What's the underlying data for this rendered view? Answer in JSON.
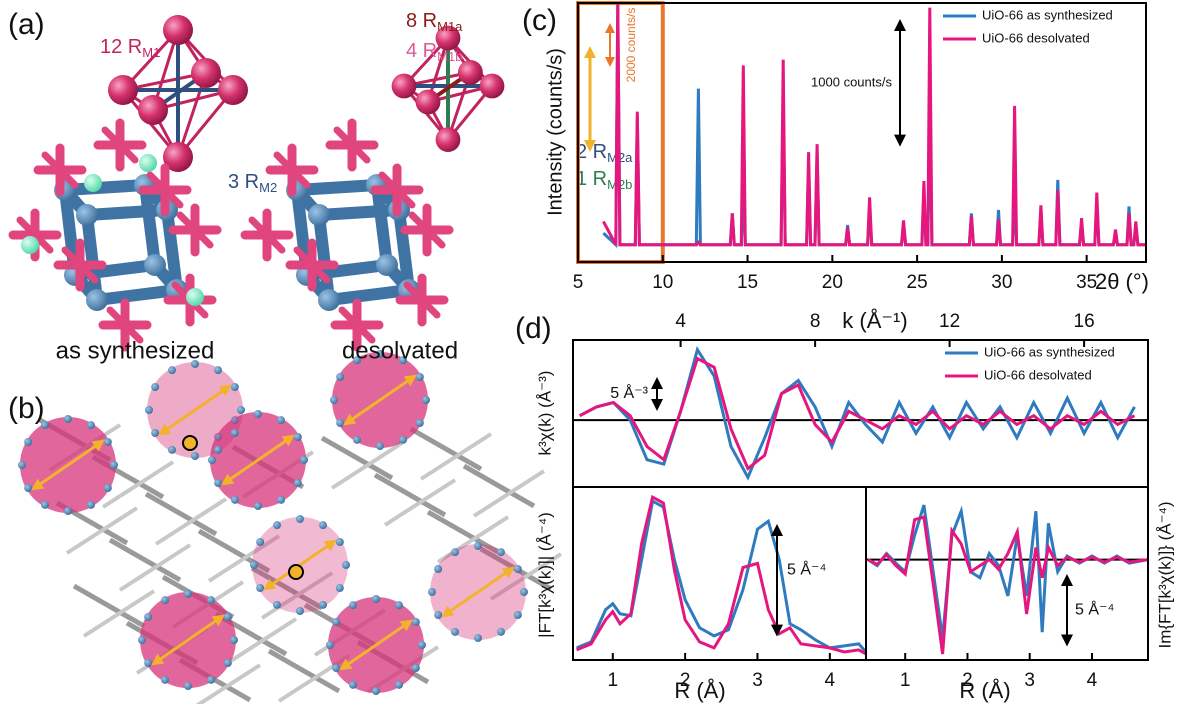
{
  "panels": {
    "a": {
      "label": "(a)",
      "annotations": [
        {
          "text": "12 R",
          "sub": "M1",
          "color": "#c0245e"
        },
        {
          "text": "3 R",
          "sub": "M2",
          "color": "#2f4f7f"
        },
        {
          "text": "8 R",
          "sub": "M1a",
          "color": "#8b1a1a"
        },
        {
          "text": "4 R",
          "sub": "M1b",
          "color": "#e0589a"
        },
        {
          "text": "2 R",
          "sub": "M2a",
          "color": "#2f4f7f"
        },
        {
          "text": "1 R",
          "sub": "M2b",
          "color": "#2e7d4f"
        }
      ],
      "captions": [
        "as synthesized",
        "desolvated"
      ]
    },
    "b": {
      "label": "(b)"
    }
  },
  "chart_data": [
    {
      "type": "line",
      "panel_label": "(c)",
      "ylabel": "Intensity (counts/s)",
      "xlabel": "2θ (°)",
      "xlim": [
        5,
        38.5
      ],
      "xticks": [
        5,
        10,
        15,
        20,
        25,
        30,
        35
      ],
      "ylim": [
        0,
        2240
      ],
      "legend": "upper right",
      "highlight": [
        5,
        10
      ],
      "highlight_color": "#e8762b",
      "annotations": [
        "2000 counts/s"
      ],
      "scale_bar": {
        "value": 1000,
        "label": "1000 counts/s"
      },
      "x": [
        6.5,
        7.23,
        7.35,
        7.47,
        8.38,
        8.5,
        8.62,
        11.98,
        12.1,
        12.22,
        13.98,
        14.1,
        14.22,
        14.63,
        14.75,
        14.87,
        16.98,
        17.1,
        17.22,
        18.48,
        18.6,
        18.72,
        18.98,
        19.1,
        19.22,
        20.78,
        20.9,
        21.02,
        22.08,
        22.2,
        22.32,
        24.08,
        24.2,
        24.32,
        25.28,
        25.4,
        25.52,
        25.63,
        25.75,
        25.87,
        28.08,
        28.2,
        28.32,
        29.68,
        29.8,
        29.92,
        30.63,
        30.75,
        30.87,
        32.18,
        32.3,
        32.42,
        33.18,
        33.3,
        33.42,
        34.58,
        34.7,
        34.82,
        35.48,
        35.6,
        35.72,
        36.58,
        36.7,
        36.82,
        37.38,
        37.5,
        37.62,
        37.78,
        37.9,
        38.02,
        38.5
      ],
      "series": [
        {
          "name": "UiO-66 as synthesized",
          "color": "#2e7bbf",
          "values": [
            250,
            150,
            2250,
            150,
            150,
            1250,
            150,
            150,
            1500,
            150,
            150,
            420,
            150,
            150,
            600,
            150,
            150,
            1400,
            150,
            150,
            850,
            150,
            150,
            950,
            150,
            150,
            320,
            150,
            150,
            450,
            150,
            150,
            330,
            150,
            150,
            600,
            150,
            150,
            1300,
            150,
            150,
            420,
            150,
            150,
            450,
            150,
            150,
            550,
            150,
            150,
            400,
            150,
            150,
            710,
            150,
            150,
            330,
            150,
            150,
            500,
            150,
            150,
            230,
            150,
            150,
            480,
            150,
            150,
            300,
            150,
            150
          ]
        },
        {
          "name": "UiO-66 desolvated",
          "color": "#e5177e",
          "values": [
            350,
            150,
            2250,
            150,
            150,
            1300,
            150,
            150,
            170,
            150,
            150,
            420,
            150,
            150,
            1700,
            150,
            150,
            1750,
            150,
            150,
            950,
            150,
            150,
            1020,
            150,
            150,
            300,
            150,
            150,
            560,
            150,
            150,
            360,
            150,
            150,
            700,
            150,
            150,
            2200,
            150,
            150,
            400,
            150,
            150,
            370,
            150,
            150,
            1350,
            150,
            150,
            490,
            150,
            150,
            620,
            150,
            150,
            380,
            150,
            150,
            600,
            150,
            150,
            280,
            150,
            150,
            420,
            150,
            150,
            350,
            150,
            150
          ]
        }
      ]
    },
    {
      "type": "line",
      "panel_label": "(d)",
      "ylabel": "k³χ(k) (Å⁻³)",
      "xlabel": "k (Å⁻¹)",
      "xaxis": "top",
      "xlim": [
        0.8,
        17.9
      ],
      "xticks": [
        4,
        8,
        12,
        16
      ],
      "ylim": [
        -15.2,
        18.2
      ],
      "zero_line": true,
      "legend": "upper right",
      "scale_bar": {
        "value": 5,
        "label": "5 Å⁻³"
      },
      "x": [
        1,
        1.5,
        2,
        2.5,
        3,
        3.5,
        4,
        4.5,
        5,
        5.5,
        6,
        6.5,
        7,
        7.5,
        8,
        8.5,
        9,
        9.5,
        10,
        10.5,
        11,
        11.5,
        12,
        12.5,
        13,
        13.5,
        14,
        14.5,
        15,
        15.5,
        16,
        16.5,
        17,
        17.5
      ],
      "series": [
        {
          "name": "UiO-66 as synthesized",
          "color": "#2e7bbf",
          "values": [
            1,
            3,
            4,
            0,
            -9,
            -10,
            2,
            16,
            10,
            -6,
            -13,
            -4,
            6,
            9,
            3,
            -6,
            4,
            -1,
            -5,
            4,
            -3,
            3,
            -4,
            4,
            -2,
            3,
            -4,
            4,
            -3,
            5,
            -3,
            4,
            -4,
            3
          ]
        },
        {
          "name": "UiO-66 desolvated",
          "color": "#e5177e",
          "values": [
            1,
            3,
            4,
            1,
            -6,
            -9,
            2,
            14,
            12,
            -2,
            -11,
            -8,
            6,
            8,
            -1,
            -5,
            2,
            0,
            -2,
            1,
            -1,
            2,
            -2,
            1,
            -1,
            2,
            -1,
            1,
            -2,
            1,
            -1,
            2,
            -1,
            1
          ]
        }
      ]
    },
    {
      "type": "line",
      "ylabel": "|FT[k³χ(k)]| (Å⁻⁴)",
      "xlabel": "R (Å)",
      "xlim": [
        0.45,
        4.5
      ],
      "xticks": [
        1,
        2,
        3,
        4
      ],
      "ylim": [
        0,
        8.6
      ],
      "scale_bar": {
        "value": 5,
        "label": "5 Å⁻⁴"
      },
      "x": [
        0.5,
        0.7,
        0.9,
        1.0,
        1.1,
        1.25,
        1.4,
        1.55,
        1.7,
        1.85,
        2.0,
        2.2,
        2.4,
        2.6,
        2.8,
        3.0,
        3.15,
        3.3,
        3.45,
        3.6,
        3.8,
        4.0,
        4.2,
        4.4,
        4.5
      ],
      "series": [
        {
          "color": "#2e7bbf",
          "values": [
            0.6,
            0.9,
            2.5,
            2.8,
            2.3,
            2.2,
            5,
            7.9,
            7.6,
            5,
            3,
            1.6,
            1.2,
            1.5,
            3.5,
            6.5,
            6.9,
            5,
            1.8,
            1.5,
            1,
            0.6,
            0.7,
            0.8,
            0.4
          ]
        },
        {
          "color": "#e5177e",
          "values": [
            0.5,
            0.8,
            2,
            2.4,
            1.8,
            2.3,
            5.8,
            8.1,
            7.8,
            4.5,
            2,
            0.9,
            0.6,
            1.8,
            4.6,
            4.8,
            2.5,
            1.3,
            1.6,
            0.8,
            0.7,
            0.6,
            0.4,
            0.5,
            0.3
          ]
        }
      ]
    },
    {
      "type": "line",
      "ylabel": "Im{FT[k³χ(k)]} (Å⁻⁴)",
      "xlabel": "R (Å)",
      "xlim": [
        0.37,
        4.9
      ],
      "xticks": [
        1,
        2,
        3,
        4
      ],
      "ylim": [
        -8.3,
        6
      ],
      "zero_line": true,
      "scale_bar": {
        "value": 5,
        "label": "5 Å⁻⁴"
      },
      "x": [
        0.4,
        0.55,
        0.7,
        0.85,
        1.0,
        1.15,
        1.3,
        1.45,
        1.6,
        1.75,
        1.9,
        2.05,
        2.2,
        2.35,
        2.5,
        2.65,
        2.8,
        2.95,
        3.1,
        3.2,
        3.3,
        3.45,
        3.6,
        3.8,
        4.0,
        4.2,
        4.4,
        4.6,
        4.9
      ],
      "series": [
        {
          "color": "#2e7bbf",
          "values": [
            0,
            -0.5,
            0.5,
            -0.3,
            -1,
            2,
            4.5,
            -1,
            -6.5,
            2,
            4,
            -1,
            -1.5,
            0.5,
            -0.5,
            -3,
            2,
            -3,
            4,
            -6,
            3,
            -1,
            0.3,
            -0.3,
            0.3,
            -0.3,
            0.3,
            -0.3,
            0
          ]
        },
        {
          "color": "#e5177e",
          "values": [
            0,
            -0.4,
            0.4,
            -0.5,
            -1.2,
            3.3,
            3.5,
            -2,
            -7.8,
            2.4,
            1.3,
            -1,
            -0.5,
            0,
            -0.8,
            0.5,
            2.3,
            -4.5,
            1,
            -1.5,
            1,
            -0.5,
            0.2,
            -0.2,
            0.2,
            -0.2,
            0.2,
            -0.2,
            0
          ]
        }
      ]
    }
  ]
}
